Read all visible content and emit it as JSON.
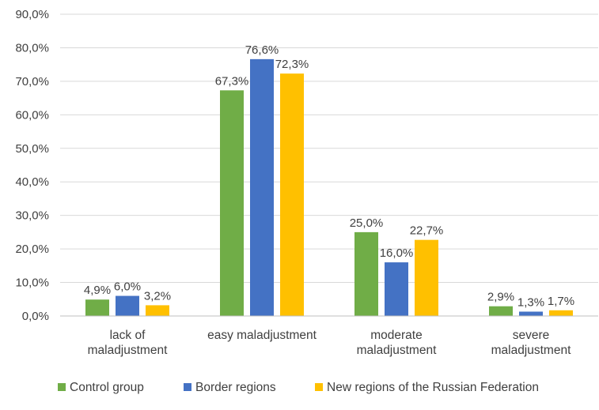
{
  "chart_data": {
    "type": "bar",
    "categories": [
      [
        "lack of",
        "maladjustment"
      ],
      [
        "easy maladjustment"
      ],
      [
        "moderate",
        "maladjustment"
      ],
      [
        "severe",
        "maladjustment"
      ]
    ],
    "series": [
      {
        "name": "Control group",
        "color": "#70ad47",
        "values": [
          4.9,
          67.3,
          25.0,
          2.9
        ],
        "labels": [
          "4,9%",
          "67,3%",
          "25,0%",
          "2,9%"
        ]
      },
      {
        "name": "Border regions",
        "color": "#4472c4",
        "values": [
          6.0,
          76.6,
          16.0,
          1.3
        ],
        "labels": [
          "6,0%",
          "76,6%",
          "16,0%",
          "1,3%"
        ]
      },
      {
        "name": "New regions of the Russian Federation",
        "color": "#ffc000",
        "values": [
          3.2,
          72.3,
          22.7,
          1.7
        ],
        "labels": [
          "3,2%",
          "72,3%",
          "22,7%",
          "1,7%"
        ]
      }
    ],
    "y_ticks": [
      0,
      10,
      20,
      30,
      40,
      50,
      60,
      70,
      80,
      90
    ],
    "y_tick_labels": [
      "0,0%",
      "10,0%",
      "20,0%",
      "30,0%",
      "40,0%",
      "50,0%",
      "60,0%",
      "70,0%",
      "80,0%",
      "90,0%"
    ],
    "ylim": [
      0,
      90
    ],
    "grid": true,
    "legend_position": "bottom"
  }
}
